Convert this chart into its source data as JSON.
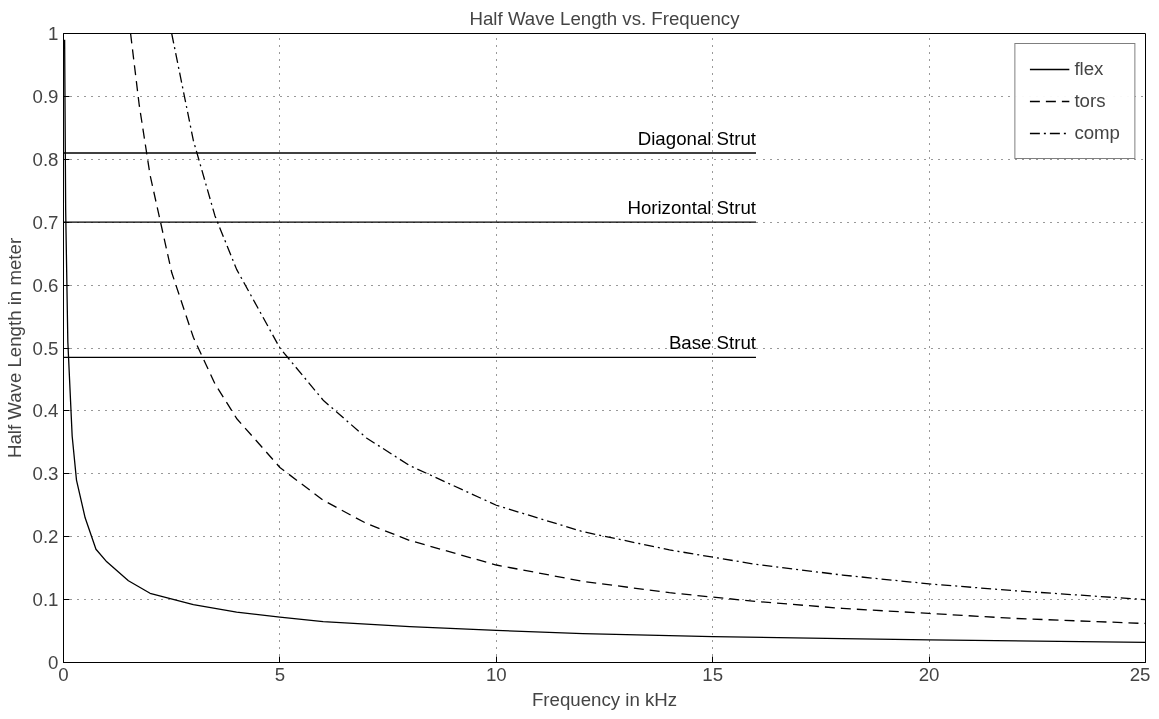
{
  "chart_data": {
    "type": "line",
    "title": "Half Wave Length vs. Frequency",
    "xlabel": "Frequency in kHz",
    "ylabel": "Half Wave Length in meter",
    "xlim": [
      0,
      25
    ],
    "xticks": [
      0,
      5,
      10,
      15,
      20,
      25
    ],
    "ylim": [
      0,
      1
    ],
    "yticks": [
      0,
      0.1,
      0.2,
      0.3,
      0.4,
      0.5,
      0.6,
      0.7,
      0.8,
      0.9,
      1
    ],
    "grid": true,
    "legend": "top right",
    "series": [
      {
        "name": "flex",
        "color": "#000000",
        "line_style": "solid",
        "x": [
          0.026,
          0.05,
          0.1,
          0.2,
          0.3,
          0.5,
          0.75,
          1,
          1.5,
          2,
          3,
          4,
          5,
          6,
          8,
          10,
          12,
          15,
          18,
          20,
          25
        ],
        "values": [
          0.99,
          0.72,
          0.51,
          0.36,
          0.29,
          0.23,
          0.18,
          0.16,
          0.13,
          0.11,
          0.092,
          0.08,
          0.072,
          0.065,
          0.057,
          0.051,
          0.046,
          0.041,
          0.038,
          0.036,
          0.032
        ]
      },
      {
        "name": "tors",
        "color": "#000000",
        "line_style": "dashed",
        "x": [
          1.55,
          1.75,
          2,
          2.5,
          3,
          3.5,
          4,
          5,
          6,
          7,
          8,
          10,
          12,
          14,
          16,
          18,
          20,
          22,
          25
        ],
        "values": [
          1.0,
          0.886,
          0.775,
          0.62,
          0.517,
          0.443,
          0.388,
          0.31,
          0.258,
          0.221,
          0.194,
          0.155,
          0.129,
          0.111,
          0.097,
          0.086,
          0.078,
          0.07,
          0.062
        ]
      },
      {
        "name": "comp",
        "color": "#000000",
        "line_style": "dashdot",
        "x": [
          2.5,
          3,
          3.5,
          4,
          5,
          6,
          7,
          8,
          10,
          12,
          14,
          16,
          18,
          20,
          22,
          25
        ],
        "values": [
          1.0,
          0.83,
          0.71,
          0.625,
          0.5,
          0.417,
          0.357,
          0.313,
          0.25,
          0.208,
          0.179,
          0.156,
          0.139,
          0.125,
          0.114,
          0.1
        ]
      },
      {
        "name": "Diagonal Strut",
        "type": "line",
        "color": "#000000",
        "line_style": "solid",
        "x": [
          0,
          16
        ],
        "values": [
          0.81,
          0.81
        ]
      },
      {
        "name": "Horizontal Strut",
        "type": "line",
        "color": "#000000",
        "line_style": "solid",
        "x": [
          0,
          16
        ],
        "values": [
          0.7,
          0.7
        ]
      },
      {
        "name": "Base Strut",
        "type": "line",
        "color": "#000000",
        "line_style": "solid",
        "x": [
          0,
          16
        ],
        "values": [
          0.485,
          0.485
        ]
      }
    ]
  }
}
